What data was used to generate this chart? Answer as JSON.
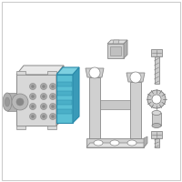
{
  "background_color": "#ffffff",
  "border_color": "#cccccc",
  "abs_fill": "#d8d8d8",
  "abs_stroke": "#888888",
  "abs_dark": "#b0b0b0",
  "abs_light": "#e8e8e8",
  "blue_fill": "#5bbfd4",
  "blue_top": "#7dd0e0",
  "blue_side": "#3a9ab8",
  "blue_stroke": "#2a8aaa",
  "part_fill": "#d0d0d0",
  "part_stroke": "#888888",
  "hw_fill": "#cccccc",
  "hw_stroke": "#777777",
  "line_color": "#888888",
  "line_width": 0.5
}
